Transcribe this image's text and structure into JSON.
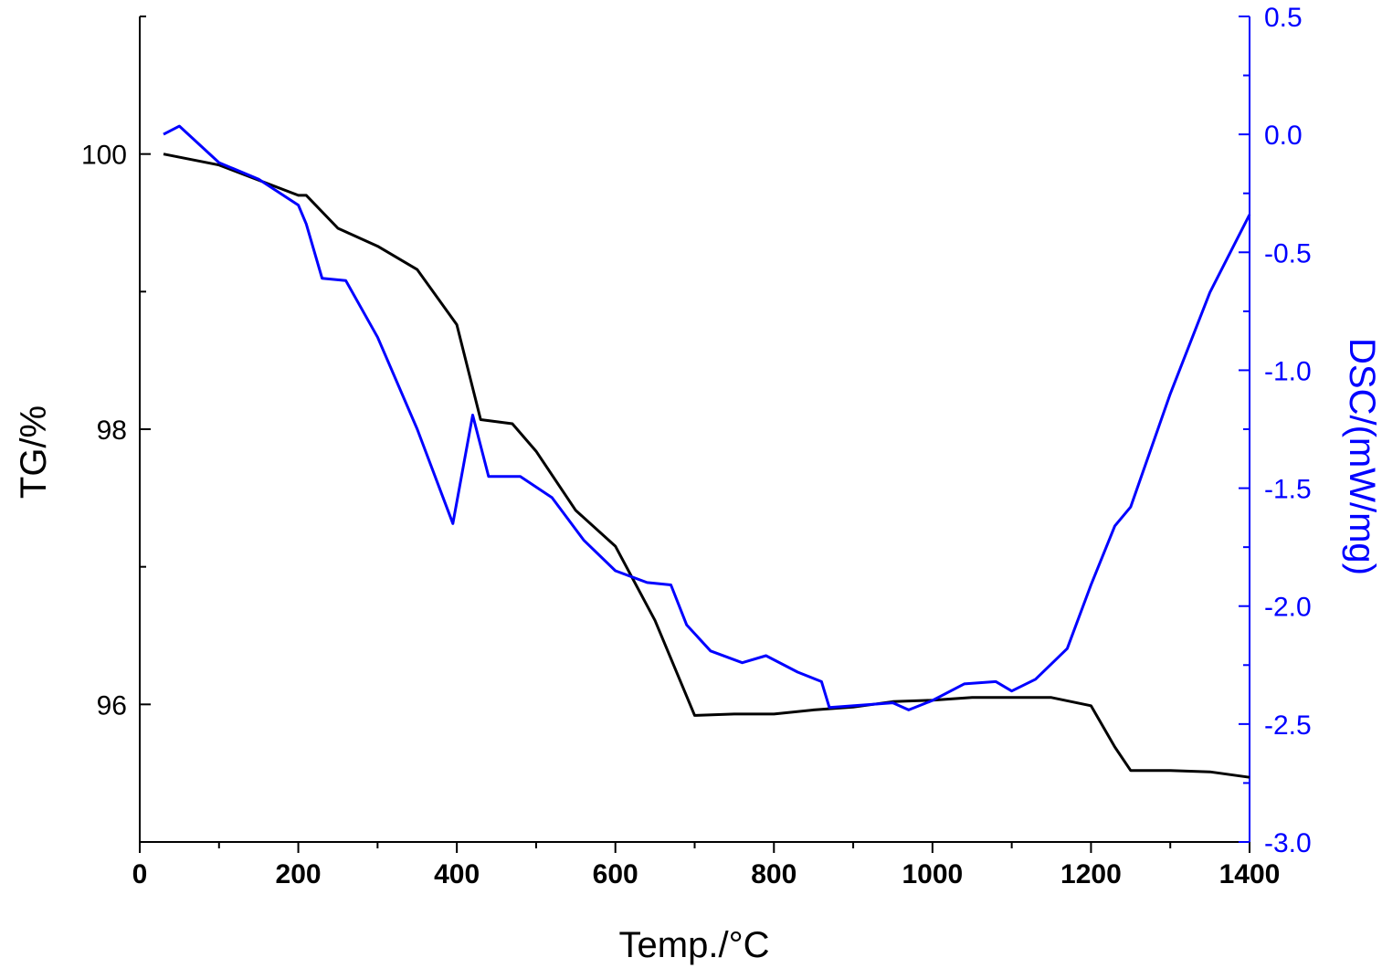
{
  "chart_data": {
    "type": "line",
    "xlabel": "Temp./°C",
    "ylabel": "TG/%",
    "y2label": "DSC/(mW/mg)",
    "xlim": [
      0,
      1400
    ],
    "ylim": [
      95,
      101
    ],
    "y2lim": [
      -3.0,
      0.5
    ],
    "xticks": [
      "0",
      "200",
      "400",
      "600",
      "800",
      "1000",
      "1200",
      "1400"
    ],
    "yticks": [
      "96",
      "98",
      "100"
    ],
    "y2ticks": [
      "-3.0",
      "-2.5",
      "-2.0",
      "-1.5",
      "-1.0",
      "-0.5",
      "0.0",
      "0.5"
    ],
    "grid": false,
    "colors": {
      "tg": "#000000",
      "dsc": "#0000ff"
    },
    "series": [
      {
        "name": "TG",
        "axis": "left",
        "x": [
          30,
          100,
          200,
          210,
          250,
          300,
          350,
          400,
          430,
          470,
          500,
          550,
          600,
          650,
          700,
          750,
          800,
          850,
          900,
          950,
          1000,
          1050,
          1100,
          1150,
          1200,
          1230,
          1250,
          1300,
          1350,
          1400
        ],
        "y": [
          100.0,
          99.92,
          99.7,
          99.7,
          99.46,
          99.33,
          99.16,
          98.76,
          98.07,
          98.04,
          97.84,
          97.41,
          97.15,
          96.61,
          95.92,
          95.93,
          95.93,
          95.96,
          95.98,
          96.02,
          96.03,
          96.05,
          96.05,
          96.05,
          95.99,
          95.69,
          95.52,
          95.52,
          95.51,
          95.47
        ]
      },
      {
        "name": "DSC",
        "axis": "right",
        "x": [
          30,
          50,
          100,
          150,
          200,
          210,
          230,
          260,
          300,
          350,
          395,
          420,
          440,
          480,
          520,
          560,
          600,
          640,
          670,
          690,
          720,
          760,
          790,
          830,
          860,
          870,
          950,
          970,
          1000,
          1040,
          1080,
          1100,
          1130,
          1170,
          1200,
          1230,
          1250,
          1300,
          1350,
          1400
        ],
        "y": [
          0.0,
          0.035,
          -0.12,
          -0.19,
          -0.3,
          -0.38,
          -0.61,
          -0.62,
          -0.86,
          -1.25,
          -1.65,
          -1.19,
          -1.45,
          -1.45,
          -1.54,
          -1.72,
          -1.85,
          -1.9,
          -1.91,
          -2.08,
          -2.19,
          -2.24,
          -2.21,
          -2.28,
          -2.32,
          -2.43,
          -2.41,
          -2.44,
          -2.4,
          -2.33,
          -2.32,
          -2.36,
          -2.31,
          -2.18,
          -1.91,
          -1.66,
          -1.58,
          -1.1,
          -0.67,
          -0.34
        ]
      }
    ]
  }
}
